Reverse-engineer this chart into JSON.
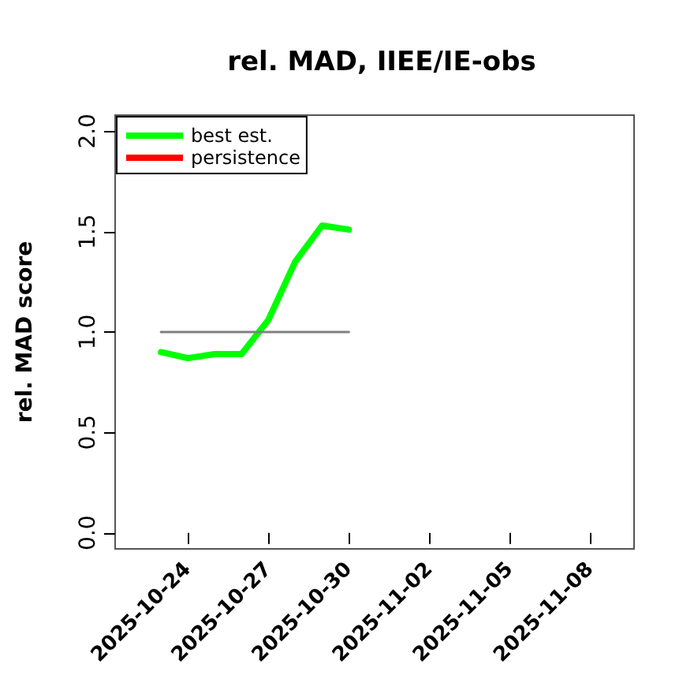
{
  "chart_data": {
    "type": "line",
    "title": "rel. MAD, IIEE/IE-obs",
    "ylabel": "rel. MAD score",
    "xlim": [
      "2025-10-21T07:00",
      "2025-11-09T15:00"
    ],
    "xticks": [
      {
        "value": "2025-10-24",
        "label": "2025-10-24"
      },
      {
        "value": "2025-10-27",
        "label": "2025-10-27"
      },
      {
        "value": "2025-10-30",
        "label": "2025-10-30"
      },
      {
        "value": "2025-11-02",
        "label": "2025-11-02"
      },
      {
        "value": "2025-11-05",
        "label": "2025-11-05"
      },
      {
        "value": "2025-11-08",
        "label": "2025-11-08"
      }
    ],
    "ylim": [
      -0.08,
      2.08
    ],
    "yticks": [
      {
        "value": 0,
        "label": "0.0"
      },
      {
        "value": 0.5,
        "label": "0.5"
      },
      {
        "value": 1,
        "label": "1.0"
      },
      {
        "value": 1.5,
        "label": "1.5"
      },
      {
        "value": 2,
        "label": "2.0"
      }
    ],
    "grid": false,
    "legend": "top left",
    "series": [
      {
        "name": "best est.",
        "color": "#00ff00",
        "x": [
          "2025-10-23",
          "2025-10-24",
          "2025-10-25",
          "2025-10-26",
          "2025-10-27",
          "2025-10-28",
          "2025-10-29",
          "2025-10-30"
        ],
        "values": [
          0.9,
          0.87,
          0.89,
          0.89,
          1.06,
          1.35,
          1.53,
          1.51
        ]
      },
      {
        "name": "persistence",
        "color": "#ff0000"
      },
      {
        "color": "#808080",
        "x": [
          "2025-10-23",
          "2025-10-30"
        ],
        "values": [
          1,
          1
        ]
      }
    ]
  }
}
